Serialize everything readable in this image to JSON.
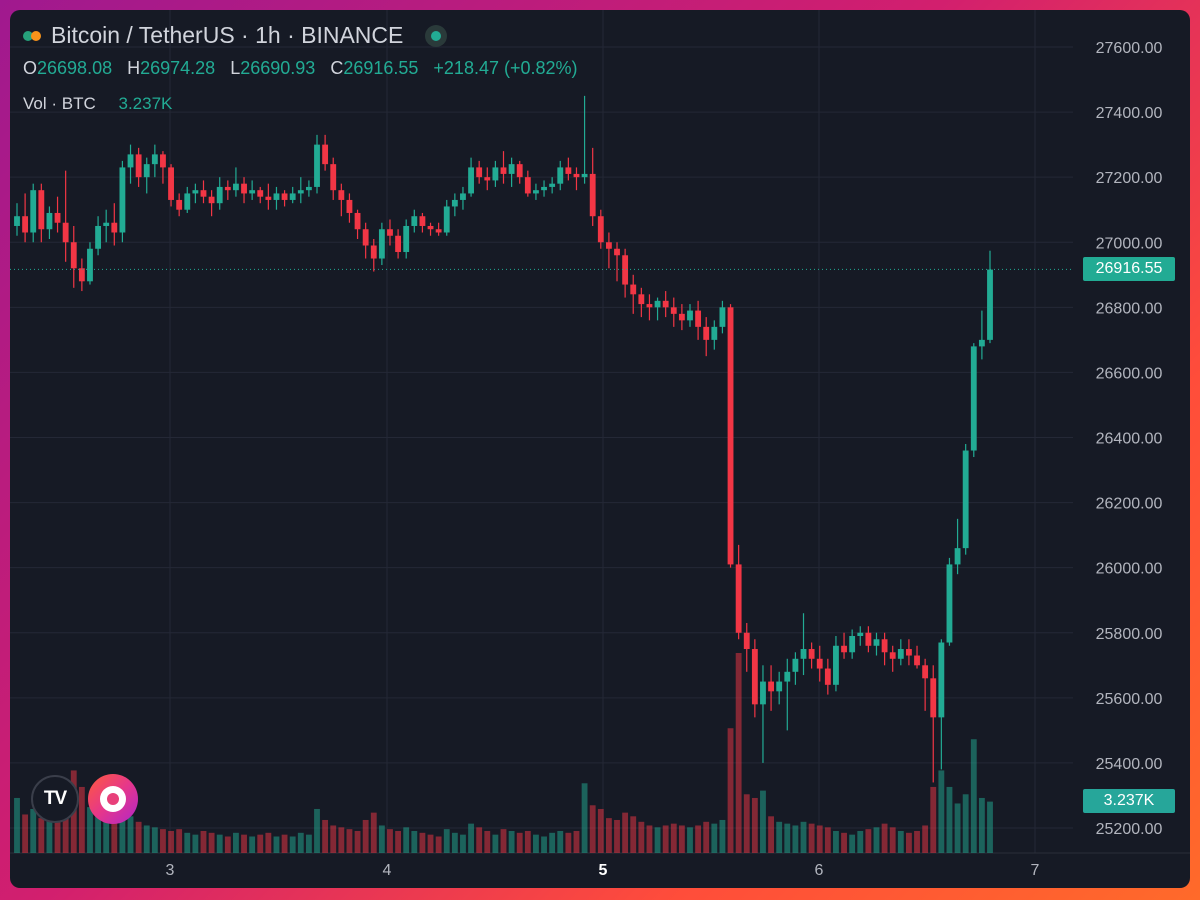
{
  "header": {
    "title": "Bitcoin / TetherUS · 1h · BINANCE",
    "o_label": "O",
    "o_value": "26698.08",
    "h_label": "H",
    "h_value": "26974.28",
    "l_label": "L",
    "l_value": "26690.93",
    "c_label": "C",
    "c_value": "26916.55",
    "change": "+218.47 (+0.82%)",
    "vol_label": "Vol · BTC",
    "vol_value": "3.237K"
  },
  "badges": {
    "price": "26916.55",
    "volume": "3.237K"
  },
  "logos": {
    "tv_text": "TV"
  },
  "colors": {
    "up": "#22ab94",
    "down": "#f23645",
    "background": "#161a25",
    "grid": "#242836",
    "text": "#d1d4dc",
    "axis_text": "#b2b5be"
  },
  "chart_data": {
    "type": "candlestick",
    "symbol": "BTCUSDT",
    "timeframe": "1h",
    "exchange": "BINANCE",
    "y_ticks": [
      "27600.00",
      "27400.00",
      "27200.00",
      "27000.00",
      "26800.00",
      "26600.00",
      "26400.00",
      "26200.00",
      "26000.00",
      "25800.00",
      "25600.00",
      "25400.00",
      "25200.00"
    ],
    "ylim": [
      25150,
      27700
    ],
    "x_ticks": [
      "3",
      "4",
      "5",
      "6",
      "7"
    ],
    "x_ticks_bold": [
      "5"
    ],
    "last_price": 26916.55,
    "last_volume_label": "3.237K",
    "candles": [
      [
        27050,
        27120,
        27020,
        27080,
        60
      ],
      [
        27080,
        27150,
        27000,
        27030,
        42
      ],
      [
        27030,
        27180,
        27000,
        27160,
        48
      ],
      [
        27160,
        27180,
        27000,
        27040,
        38
      ],
      [
        27040,
        27110,
        27010,
        27090,
        52
      ],
      [
        27090,
        27140,
        27030,
        27060,
        40
      ],
      [
        27060,
        27220,
        26940,
        27000,
        68
      ],
      [
        27000,
        27050,
        26860,
        26920,
        90
      ],
      [
        26920,
        26950,
        26850,
        26880,
        72
      ],
      [
        26880,
        27000,
        26870,
        26980,
        50
      ],
      [
        26980,
        27080,
        26960,
        27050,
        44
      ],
      [
        27050,
        27100,
        27000,
        27060,
        38
      ],
      [
        27060,
        27120,
        26990,
        27030,
        36
      ],
      [
        27030,
        27250,
        27000,
        27230,
        46
      ],
      [
        27230,
        27300,
        27180,
        27270,
        40
      ],
      [
        27270,
        27290,
        27170,
        27200,
        34
      ],
      [
        27200,
        27260,
        27150,
        27240,
        30
      ],
      [
        27240,
        27300,
        27200,
        27270,
        28
      ],
      [
        27270,
        27280,
        27180,
        27230,
        26
      ],
      [
        27230,
        27240,
        27110,
        27130,
        24
      ],
      [
        27130,
        27150,
        27080,
        27100,
        26
      ],
      [
        27100,
        27170,
        27090,
        27150,
        22
      ],
      [
        27150,
        27180,
        27120,
        27160,
        20
      ],
      [
        27160,
        27190,
        27120,
        27140,
        24
      ],
      [
        27140,
        27160,
        27080,
        27120,
        22
      ],
      [
        27120,
        27200,
        27100,
        27170,
        20
      ],
      [
        27170,
        27190,
        27130,
        27160,
        18
      ],
      [
        27160,
        27230,
        27140,
        27180,
        22
      ],
      [
        27180,
        27200,
        27120,
        27150,
        20
      ],
      [
        27150,
        27190,
        27130,
        27160,
        18
      ],
      [
        27160,
        27170,
        27120,
        27140,
        20
      ],
      [
        27140,
        27180,
        27100,
        27130,
        22
      ],
      [
        27130,
        27170,
        27100,
        27150,
        18
      ],
      [
        27150,
        27160,
        27110,
        27130,
        20
      ],
      [
        27130,
        27170,
        27120,
        27150,
        18
      ],
      [
        27150,
        27200,
        27120,
        27160,
        22
      ],
      [
        27160,
        27190,
        27140,
        27170,
        20
      ],
      [
        27170,
        27330,
        27150,
        27300,
        48
      ],
      [
        27300,
        27330,
        27220,
        27240,
        36
      ],
      [
        27240,
        27260,
        27130,
        27160,
        30
      ],
      [
        27160,
        27180,
        27080,
        27130,
        28
      ],
      [
        27130,
        27150,
        27060,
        27090,
        26
      ],
      [
        27090,
        27100,
        27010,
        27040,
        24
      ],
      [
        27040,
        27060,
        26950,
        26990,
        36
      ],
      [
        26990,
        27010,
        26910,
        26950,
        44
      ],
      [
        26950,
        27060,
        26930,
        27040,
        30
      ],
      [
        27040,
        27070,
        26990,
        27020,
        26
      ],
      [
        27020,
        27040,
        26950,
        26970,
        24
      ],
      [
        26970,
        27070,
        26950,
        27050,
        28
      ],
      [
        27050,
        27100,
        27030,
        27080,
        24
      ],
      [
        27080,
        27090,
        27030,
        27050,
        22
      ],
      [
        27050,
        27060,
        27020,
        27040,
        20
      ],
      [
        27040,
        27060,
        27020,
        27030,
        18
      ],
      [
        27030,
        27130,
        27020,
        27110,
        26
      ],
      [
        27110,
        27150,
        27080,
        27130,
        22
      ],
      [
        27130,
        27170,
        27100,
        27150,
        20
      ],
      [
        27150,
        27260,
        27140,
        27230,
        32
      ],
      [
        27230,
        27250,
        27180,
        27200,
        28
      ],
      [
        27200,
        27230,
        27160,
        27190,
        24
      ],
      [
        27190,
        27250,
        27170,
        27230,
        20
      ],
      [
        27230,
        27280,
        27180,
        27210,
        26
      ],
      [
        27210,
        27260,
        27170,
        27240,
        24
      ],
      [
        27240,
        27250,
        27180,
        27200,
        22
      ],
      [
        27200,
        27220,
        27140,
        27150,
        24
      ],
      [
        27150,
        27180,
        27130,
        27160,
        20
      ],
      [
        27160,
        27190,
        27140,
        27170,
        18
      ],
      [
        27170,
        27200,
        27150,
        27180,
        22
      ],
      [
        27180,
        27250,
        27160,
        27230,
        24
      ],
      [
        27230,
        27260,
        27190,
        27210,
        22
      ],
      [
        27210,
        27230,
        27160,
        27200,
        24
      ],
      [
        27200,
        27450,
        27180,
        27210,
        76
      ],
      [
        27210,
        27290,
        27050,
        27080,
        52
      ],
      [
        27080,
        27100,
        26980,
        27000,
        48
      ],
      [
        27000,
        27030,
        26920,
        26980,
        38
      ],
      [
        26980,
        27000,
        26880,
        26960,
        36
      ],
      [
        26960,
        26980,
        26830,
        26870,
        44
      ],
      [
        26870,
        26900,
        26780,
        26840,
        40
      ],
      [
        26840,
        26860,
        26770,
        26810,
        34
      ],
      [
        26810,
        26840,
        26760,
        26800,
        30
      ],
      [
        26800,
        26830,
        26760,
        26820,
        28
      ],
      [
        26820,
        26850,
        26770,
        26800,
        30
      ],
      [
        26800,
        26830,
        26740,
        26780,
        32
      ],
      [
        26780,
        26810,
        26730,
        26760,
        30
      ],
      [
        26760,
        26810,
        26740,
        26790,
        28
      ],
      [
        26790,
        26820,
        26700,
        26740,
        30
      ],
      [
        26740,
        26770,
        26650,
        26700,
        34
      ],
      [
        26700,
        26760,
        26670,
        26740,
        32
      ],
      [
        26740,
        26820,
        26720,
        26800,
        36
      ],
      [
        26800,
        26810,
        26000,
        26010,
        136
      ],
      [
        26010,
        26070,
        25780,
        25800,
        218
      ],
      [
        25800,
        25830,
        25680,
        25750,
        64
      ],
      [
        25750,
        25780,
        25540,
        25580,
        60
      ],
      [
        25580,
        25700,
        25400,
        25650,
        68
      ],
      [
        25650,
        25700,
        25560,
        25620,
        40
      ],
      [
        25620,
        25680,
        25580,
        25650,
        34
      ],
      [
        25650,
        25720,
        25500,
        25680,
        32
      ],
      [
        25680,
        25740,
        25640,
        25720,
        30
      ],
      [
        25720,
        25860,
        25670,
        25750,
        34
      ],
      [
        25750,
        25770,
        25690,
        25720,
        32
      ],
      [
        25720,
        25760,
        25650,
        25690,
        30
      ],
      [
        25690,
        25720,
        25610,
        25640,
        28
      ],
      [
        25640,
        25790,
        25620,
        25760,
        24
      ],
      [
        25760,
        25800,
        25720,
        25740,
        22
      ],
      [
        25740,
        25810,
        25720,
        25790,
        20
      ],
      [
        25790,
        25820,
        25760,
        25800,
        24
      ],
      [
        25800,
        25820,
        25740,
        25760,
        26
      ],
      [
        25760,
        25800,
        25730,
        25780,
        28
      ],
      [
        25780,
        25800,
        25700,
        25740,
        32
      ],
      [
        25740,
        25760,
        25680,
        25720,
        28
      ],
      [
        25720,
        25780,
        25700,
        25750,
        24
      ],
      [
        25750,
        25780,
        25700,
        25730,
        22
      ],
      [
        25730,
        25760,
        25690,
        25700,
        24
      ],
      [
        25700,
        25720,
        25560,
        25660,
        30
      ],
      [
        25660,
        25700,
        25340,
        25540,
        72
      ],
      [
        25540,
        25780,
        25380,
        25770,
        90
      ],
      [
        25770,
        26030,
        25760,
        26010,
        72
      ],
      [
        26010,
        26150,
        25980,
        26060,
        54
      ],
      [
        26060,
        26380,
        26040,
        26360,
        64
      ],
      [
        26360,
        26690,
        26340,
        26680,
        124
      ],
      [
        26680,
        26790,
        26640,
        26700,
        60
      ],
      [
        26700,
        26974,
        26690,
        26916,
        56
      ]
    ]
  }
}
